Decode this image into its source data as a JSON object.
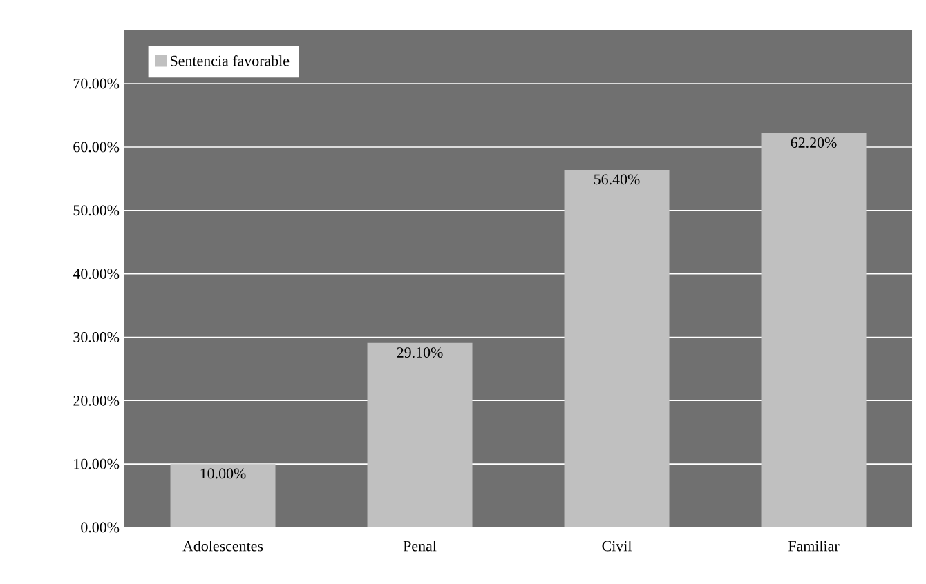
{
  "chart_data": {
    "type": "bar",
    "categories": [
      "Adolescentes",
      "Penal",
      "Civil",
      "Familiar"
    ],
    "series": [
      {
        "name": "Sentencia favorable",
        "color": "#c0c0c0",
        "values": [
          10.0,
          29.1,
          56.4,
          62.2
        ],
        "value_labels": [
          "10.00%",
          "29.10%",
          "56.40%",
          "62.20%"
        ]
      }
    ],
    "ylim": [
      0,
      78.4
    ],
    "yticks": [
      {
        "value": 0,
        "label": "0.00%"
      },
      {
        "value": 10,
        "label": "10.00%"
      },
      {
        "value": 20,
        "label": "20.00%"
      },
      {
        "value": 30,
        "label": "30.00%"
      },
      {
        "value": 40,
        "label": "40.00%"
      },
      {
        "value": 50,
        "label": "50.00%"
      },
      {
        "value": 60,
        "label": "60.00%"
      },
      {
        "value": 70,
        "label": "70.00%"
      }
    ],
    "grid": "y",
    "legend": "top left"
  }
}
